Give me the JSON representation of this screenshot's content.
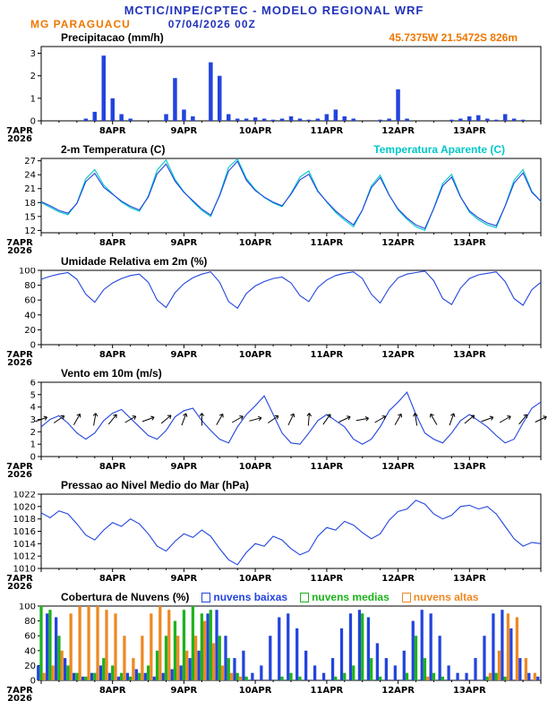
{
  "header": {
    "title": "MCTIC/INPE/CPTEC - MODELO REGIONAL WRF",
    "station": "MG PARAGUACU",
    "run": "07/04/2026 00Z",
    "coords": "45.7375W 21.5472S 826m"
  },
  "colors": {
    "header_blue": "#2233bb",
    "orange": "#ee7700",
    "line_blue": "#2244dd",
    "aparente_cyan": "#00c8c8",
    "cloud_green": "#1db31d",
    "cloud_orange": "#ee8822",
    "black": "#000000"
  },
  "x_axis": {
    "day_labels": [
      "7APR",
      "8APR",
      "9APR",
      "10APR",
      "11APR",
      "12APR",
      "13APR"
    ],
    "year": "2026",
    "hours_span": 168,
    "step_hours": 3
  },
  "chart_data": [
    {
      "type": "bar",
      "title": "Precipitacao (mm/h)",
      "ylim": [
        0,
        3.3
      ],
      "yticks": [
        0,
        1,
        2,
        3
      ],
      "series": [
        {
          "name": "precipitacao",
          "color": "#2244dd",
          "values": [
            0,
            0,
            0,
            0,
            0,
            0.1,
            0.4,
            2.9,
            1.0,
            0.3,
            0.1,
            0,
            0,
            0,
            0.3,
            1.9,
            0.5,
            0.2,
            0,
            2.6,
            2.0,
            0.3,
            0.1,
            0.1,
            0.15,
            0.1,
            0.05,
            0.1,
            0.2,
            0.1,
            0.05,
            0.1,
            0.3,
            0.5,
            0.2,
            0.1,
            0,
            0,
            0.05,
            0.1,
            1.4,
            0.1,
            0,
            0,
            0,
            0,
            0.05,
            0.1,
            0.2,
            0.25,
            0.1,
            0.05,
            0.3,
            0.1,
            0.05,
            0,
            0
          ]
        }
      ]
    },
    {
      "type": "line",
      "title": "2-m Temperatura (C)",
      "right_label": "Temperatura Aparente (C)",
      "ylim": [
        11.5,
        27.5
      ],
      "yticks": [
        12,
        15,
        18,
        21,
        24,
        27
      ],
      "series": [
        {
          "name": "temperatura-aparente",
          "color": "#00c8c8",
          "values": [
            18.0,
            17.0,
            16.0,
            15.4,
            17.9,
            23.1,
            25.1,
            21.8,
            19.9,
            18.1,
            16.9,
            16.1,
            19.4,
            25.0,
            27.2,
            23.0,
            20.3,
            18.2,
            16.3,
            15.0,
            19.7,
            25.6,
            27.4,
            23.2,
            20.8,
            19.1,
            17.9,
            17.1,
            20.0,
            23.5,
            24.8,
            20.6,
            18.1,
            15.9,
            14.2,
            12.8,
            16.4,
            21.6,
            23.9,
            19.7,
            16.4,
            14.4,
            12.8,
            12.0,
            16.8,
            22.1,
            24.1,
            19.3,
            15.9,
            14.3,
            13.2,
            12.6,
            17.3,
            22.8,
            25.1,
            20.4,
            18.2
          ]
        },
        {
          "name": "temperatura-2m",
          "color": "#2244dd",
          "values": [
            18.2,
            17.3,
            16.3,
            15.7,
            17.8,
            22.5,
            24.3,
            21.3,
            19.8,
            18.3,
            17.2,
            16.4,
            19.2,
            24.2,
            26.3,
            22.6,
            20.2,
            18.4,
            16.6,
            15.3,
            19.5,
            24.8,
            26.9,
            22.8,
            20.6,
            19.2,
            18.1,
            17.3,
            19.8,
            22.9,
            24.1,
            20.4,
            18.2,
            16.2,
            14.6,
            13.2,
            16.4,
            21.2,
            23.4,
            19.6,
            16.6,
            14.7,
            13.2,
            12.4,
            16.7,
            21.6,
            23.5,
            19.2,
            16.2,
            14.7,
            13.6,
            13.0,
            17.2,
            22.2,
            24.4,
            20.2,
            18.3
          ]
        }
      ]
    },
    {
      "type": "line",
      "title": "Umidade Relativa em 2m (%)",
      "ylim": [
        0,
        100
      ],
      "yticks": [
        0,
        20,
        40,
        60,
        80,
        100
      ],
      "series": [
        {
          "name": "umidade-relativa",
          "color": "#2244dd",
          "values": [
            88,
            92,
            95,
            97,
            88,
            68,
            57,
            74,
            83,
            89,
            93,
            95,
            84,
            60,
            50,
            70,
            82,
            90,
            95,
            98,
            84,
            58,
            49,
            69,
            79,
            85,
            89,
            91,
            83,
            66,
            58,
            77,
            87,
            93,
            96,
            98,
            89,
            68,
            56,
            76,
            90,
            95,
            97,
            99,
            86,
            62,
            54,
            76,
            89,
            94,
            96,
            98,
            85,
            62,
            53,
            74,
            84
          ]
        }
      ]
    },
    {
      "type": "line",
      "title": "Vento em 10m (m/s)",
      "ylim": [
        0,
        6
      ],
      "yticks": [
        0,
        1,
        2,
        3,
        4,
        5,
        6
      ],
      "series": [
        {
          "name": "velocidade-vento",
          "color": "#2244dd",
          "values": [
            2.4,
            3.0,
            3.3,
            2.7,
            1.9,
            1.4,
            1.9,
            2.9,
            3.5,
            3.8,
            3.1,
            2.4,
            1.7,
            1.4,
            2.1,
            3.2,
            3.7,
            3.9,
            2.9,
            2.1,
            1.4,
            1.1,
            2.4,
            3.4,
            4.1,
            4.9,
            3.4,
            1.9,
            1.1,
            1.0,
            1.9,
            2.9,
            3.4,
            2.9,
            2.4,
            1.4,
            1.0,
            1.4,
            2.4,
            3.7,
            4.4,
            5.2,
            3.4,
            1.9,
            1.4,
            1.1,
            1.9,
            2.9,
            3.4,
            2.9,
            2.4,
            1.7,
            1.1,
            1.4,
            2.7,
            3.9,
            4.4
          ]
        }
      ],
      "arrows": {
        "name": "direcao-vento",
        "y": 3,
        "color": "#000000",
        "step_hours": 6,
        "angles_deg": [
          20,
          35,
          60,
          80,
          50,
          30,
          20,
          40,
          70,
          90,
          60,
          30,
          15,
          35,
          65,
          85,
          55,
          25,
          10,
          30,
          60,
          100,
          120,
          70,
          40,
          20,
          30,
          50,
          25
        ]
      }
    },
    {
      "type": "line",
      "title": "Pressao ao Nivel Medio do Mar (hPa)",
      "ylim": [
        1010,
        1022
      ],
      "yticks": [
        1010,
        1012,
        1014,
        1016,
        1018,
        1020,
        1022
      ],
      "series": [
        {
          "name": "pressao-nivel-mar",
          "color": "#2244dd",
          "values": [
            1019.0,
            1018.2,
            1019.3,
            1018.8,
            1017.2,
            1015.4,
            1014.6,
            1016.2,
            1017.4,
            1016.8,
            1018.0,
            1017.2,
            1015.6,
            1013.6,
            1012.8,
            1014.4,
            1015.6,
            1015.0,
            1016.2,
            1015.2,
            1013.2,
            1011.4,
            1010.6,
            1012.6,
            1014.0,
            1013.6,
            1015.2,
            1014.6,
            1013.2,
            1012.2,
            1012.8,
            1015.2,
            1016.6,
            1016.2,
            1017.6,
            1017.0,
            1015.8,
            1014.8,
            1015.6,
            1017.8,
            1019.2,
            1019.6,
            1021.0,
            1020.4,
            1018.8,
            1018.0,
            1018.6,
            1020.0,
            1020.2,
            1019.6,
            1020.0,
            1018.8,
            1016.8,
            1014.8,
            1013.6,
            1014.2,
            1014.0
          ]
        }
      ]
    },
    {
      "type": "cloudbars",
      "title": "Cobertura de Nuvens (%)",
      "ylim": [
        0,
        100
      ],
      "yticks": [
        0,
        20,
        40,
        60,
        80,
        100
      ],
      "legend": [
        {
          "label": "nuvens baixas",
          "color": "#2244dd"
        },
        {
          "label": "nuvens medias",
          "color": "#1db31d"
        },
        {
          "label": "nuvens altas",
          "color": "#ee8822"
        }
      ],
      "series": [
        {
          "name": "nuvens-baixas",
          "color": "#2244dd",
          "values": [
            20,
            90,
            85,
            30,
            10,
            5,
            10,
            20,
            10,
            5,
            10,
            15,
            10,
            5,
            10,
            15,
            20,
            30,
            40,
            90,
            95,
            60,
            30,
            40,
            10,
            20,
            60,
            85,
            90,
            70,
            40,
            20,
            10,
            30,
            70,
            90,
            95,
            85,
            50,
            30,
            20,
            40,
            80,
            95,
            90,
            60,
            20,
            10,
            10,
            30,
            60,
            90,
            95,
            70,
            30,
            10,
            5
          ]
        },
        {
          "name": "nuvens-medias",
          "color": "#1db31d",
          "values": [
            100,
            95,
            60,
            20,
            10,
            5,
            10,
            30,
            20,
            10,
            5,
            10,
            20,
            40,
            60,
            80,
            95,
            100,
            90,
            95,
            60,
            30,
            10,
            5,
            0,
            0,
            0,
            5,
            10,
            5,
            0,
            0,
            0,
            5,
            10,
            20,
            90,
            30,
            5,
            0,
            0,
            10,
            60,
            30,
            10,
            5,
            0,
            0,
            0,
            0,
            5,
            10,
            5,
            0,
            0,
            0,
            0
          ]
        },
        {
          "name": "nuvens-altas",
          "color": "#ee8822",
          "values": [
            10,
            20,
            40,
            90,
            100,
            100,
            100,
            95,
            90,
            60,
            30,
            60,
            90,
            100,
            95,
            60,
            40,
            60,
            80,
            50,
            20,
            10,
            5,
            0,
            0,
            0,
            0,
            0,
            0,
            0,
            0,
            0,
            0,
            0,
            0,
            0,
            0,
            0,
            0,
            0,
            0,
            0,
            0,
            5,
            0,
            0,
            0,
            0,
            0,
            0,
            10,
            40,
            90,
            85,
            30,
            10,
            0
          ]
        }
      ]
    }
  ]
}
